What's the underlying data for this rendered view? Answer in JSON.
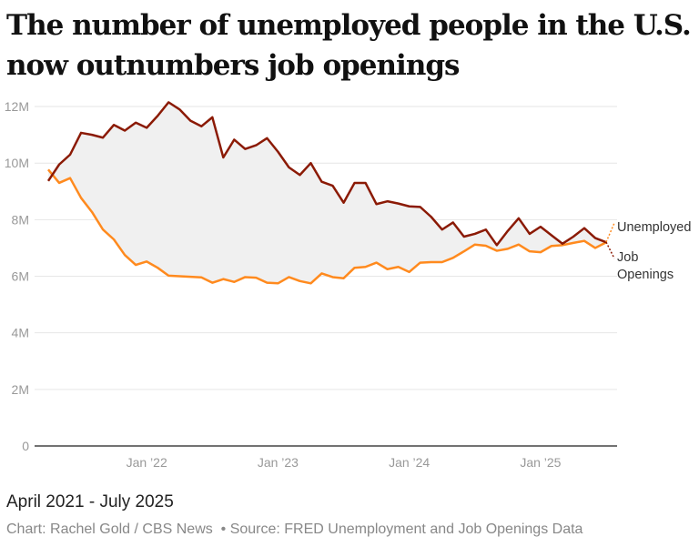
{
  "title": "The number of unemployed people in the U.S. now outnumbers job openings",
  "subtitle": "April 2021 - July 2025",
  "credit": "Chart: Rachel Gold / CBS News",
  "source": "• Source: FRED Unemployment and Job Openings Data",
  "chart_data": {
    "type": "line",
    "x_start": "2021-04",
    "x_end": "2025-07",
    "xtick_labels": [
      "Jan ’22",
      "Jan ’23",
      "Jan ’24",
      "Jan ’25"
    ],
    "xtick_index": [
      9,
      21,
      33,
      45
    ],
    "ytick_labels": [
      "0",
      "2M",
      "4M",
      "6M",
      "8M",
      "10M",
      "12M"
    ],
    "yticks": [
      0,
      2,
      4,
      6,
      8,
      10,
      12
    ],
    "ylim": [
      0,
      12
    ],
    "yunit": "millions",
    "grid": true,
    "fill_between": true,
    "colors": {
      "Unemployed": "#ff8a1e",
      "Job Openings": "#8b1a05",
      "fill": "#f0f0f0"
    },
    "series": [
      {
        "name": "Unemployed",
        "label": "Unemployed",
        "values": [
          9.77,
          9.3,
          9.47,
          8.77,
          8.27,
          7.65,
          7.3,
          6.75,
          6.4,
          6.52,
          6.3,
          6.02,
          6.0,
          5.98,
          5.96,
          5.77,
          5.9,
          5.8,
          5.97,
          5.95,
          5.77,
          5.75,
          5.97,
          5.83,
          5.75,
          6.1,
          5.97,
          5.93,
          6.3,
          6.33,
          6.48,
          6.25,
          6.33,
          6.15,
          6.48,
          6.5,
          6.5,
          6.65,
          6.88,
          7.12,
          7.08,
          6.9,
          6.97,
          7.12,
          6.88,
          6.85,
          7.07,
          7.1,
          7.18,
          7.25,
          7.0,
          7.2
        ]
      },
      {
        "name": "Job Openings",
        "label_lines": [
          "Job",
          "Openings"
        ],
        "values": [
          9.37,
          9.95,
          10.3,
          11.07,
          11.0,
          10.9,
          11.35,
          11.15,
          11.43,
          11.25,
          11.67,
          12.15,
          11.9,
          11.5,
          11.3,
          11.62,
          10.2,
          10.83,
          10.5,
          10.63,
          10.88,
          10.4,
          9.85,
          9.58,
          10.0,
          9.34,
          9.2,
          8.6,
          9.3,
          9.3,
          8.55,
          8.65,
          8.57,
          8.47,
          8.45,
          8.1,
          7.65,
          7.9,
          7.4,
          7.5,
          7.65,
          7.1,
          7.6,
          8.05,
          7.5,
          7.75,
          7.45,
          7.15,
          7.4,
          7.7,
          7.35,
          7.2
        ]
      }
    ]
  }
}
